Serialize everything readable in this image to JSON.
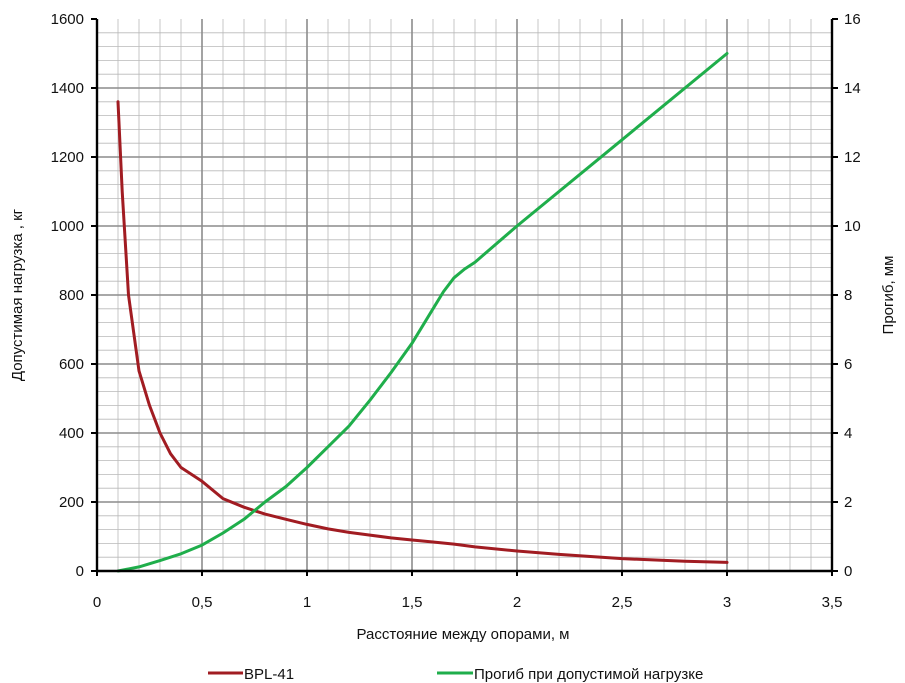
{
  "chart_data": {
    "type": "line",
    "title": "",
    "xlabel": "Расстояние между опорами, м",
    "ylabel_left": "Допустимая нагрузка , кг",
    "ylabel_right": "Прогиб, мм",
    "xlim": [
      0,
      3.5
    ],
    "ylim_left": [
      0,
      1600
    ],
    "ylim_right": [
      0,
      16
    ],
    "x_ticks": [
      "0",
      "0,5",
      "1",
      "1,5",
      "2",
      "2,5",
      "3",
      "3,5"
    ],
    "y_left_ticks": [
      "0",
      "200",
      "400",
      "600",
      "800",
      "1000",
      "1200",
      "1400",
      "1600"
    ],
    "y_right_ticks": [
      "0",
      "2",
      "4",
      "6",
      "8",
      "10",
      "12",
      "14",
      "16"
    ],
    "grid": true,
    "legend_position": "bottom",
    "series": [
      {
        "name": "BPL-41",
        "axis": "left",
        "color": "#a11c22",
        "x": [
          0.1,
          0.12,
          0.15,
          0.2,
          0.25,
          0.3,
          0.35,
          0.4,
          0.5,
          0.6,
          0.7,
          0.8,
          0.9,
          1.0,
          1.1,
          1.2,
          1.3,
          1.4,
          1.5,
          1.6,
          1.7,
          1.8,
          2.0,
          2.2,
          2.5,
          2.8,
          3.0
        ],
        "y": [
          1360,
          1100,
          800,
          580,
          480,
          400,
          340,
          300,
          260,
          210,
          185,
          165,
          150,
          135,
          122,
          112,
          104,
          96,
          90,
          84,
          78,
          70,
          58,
          48,
          36,
          28,
          25
        ]
      },
      {
        "name": "Прогиб при допустимой нагрузке",
        "axis": "right",
        "color": "#1fae4b",
        "x": [
          0.1,
          0.2,
          0.3,
          0.4,
          0.5,
          0.6,
          0.7,
          0.8,
          0.9,
          1.0,
          1.1,
          1.2,
          1.3,
          1.4,
          1.5,
          1.6,
          1.65,
          1.7,
          1.75,
          1.8,
          2.0,
          2.5,
          3.0
        ],
        "y": [
          0.0,
          0.12,
          0.3,
          0.5,
          0.75,
          1.1,
          1.5,
          2.0,
          2.45,
          3.0,
          3.6,
          4.2,
          4.95,
          5.75,
          6.6,
          7.6,
          8.1,
          8.5,
          8.75,
          8.95,
          10.0,
          12.5,
          15.0
        ]
      }
    ]
  }
}
